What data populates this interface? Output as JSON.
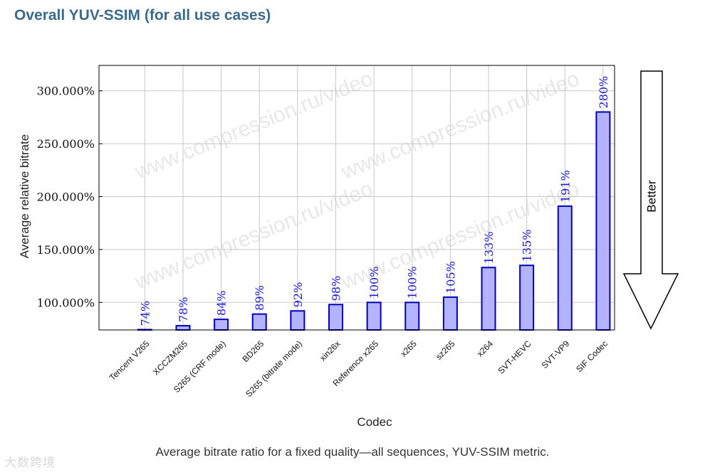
{
  "page": {
    "title": "Overall YUV-SSIM (for all use cases)",
    "caption": "Average bitrate ratio for a fixed quality—all sequences, YUV-SSIM metric.",
    "logo_text": "大数跨境"
  },
  "chart_data": {
    "type": "bar",
    "title": "Overall YUV-SSIM (for all use cases)",
    "xlabel": "Codec",
    "ylabel": "Average relative bitrate",
    "categories": [
      "Tencent V265",
      "XCCZM265",
      "S265 (CRF mode)",
      "BD265",
      "S265 (bitrate mode)",
      "xin26x",
      "Reference x265",
      "x265",
      "sz265",
      "x264",
      "SVT-HEVC",
      "SVT-VP9",
      "SIF Codec"
    ],
    "values": [
      74,
      78,
      84,
      89,
      92,
      98,
      100,
      100,
      105,
      133,
      135,
      191,
      280
    ],
    "data_labels": [
      "74%",
      "78%",
      "84%",
      "89%",
      "92%",
      "98%",
      "100%",
      "100%",
      "105%",
      "133%",
      "135%",
      "191%",
      "280%"
    ],
    "yticks": [
      100,
      150,
      200,
      250,
      300
    ],
    "ytick_labels": [
      "100.000%",
      "150.000%",
      "200.000%",
      "250.000%",
      "300.000%"
    ],
    "ylim": [
      74,
      324
    ],
    "grid": true,
    "arrow_label": "Better",
    "watermark": "www.compression.ru/video",
    "colors": {
      "bar_fill": "#b3b3ff",
      "bar_stroke": "#0000bb",
      "label": "#1a1ad6",
      "grid": "#c8c8c8"
    }
  }
}
